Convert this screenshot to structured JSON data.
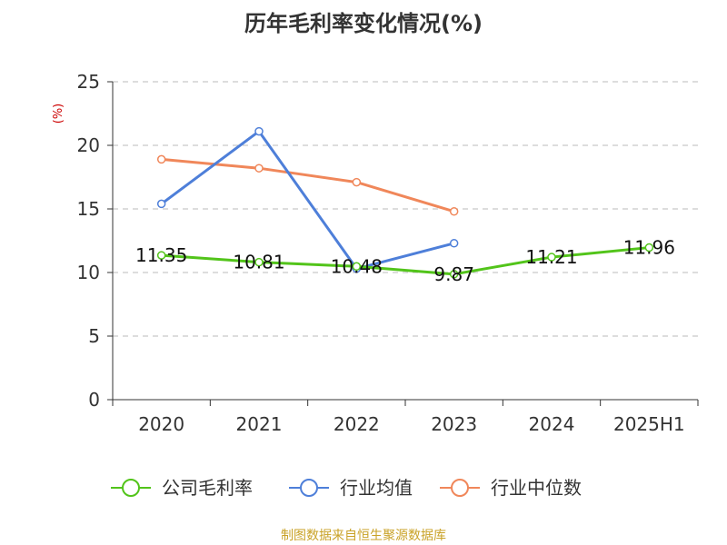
{
  "chart_data": {
    "type": "line",
    "title": "历年毛利率变化情况(%)",
    "ylabel": "(%)",
    "xlabel": "",
    "categories": [
      "2020",
      "2021",
      "2022",
      "2023",
      "2024",
      "2025H1"
    ],
    "ylim": [
      0,
      25
    ],
    "yticks": [
      0,
      5,
      10,
      15,
      20,
      25
    ],
    "grid": true,
    "legend_position": "bottom",
    "series": [
      {
        "name": "公司毛利率",
        "color": "#52c41a",
        "values": [
          11.35,
          10.81,
          10.48,
          9.87,
          11.21,
          11.96
        ],
        "labels": [
          "11.35",
          "10.81",
          "10.48",
          "9.87",
          "11.21",
          "11.96"
        ]
      },
      {
        "name": "行业均值",
        "color": "#4e7fd9",
        "values": [
          15.4,
          21.1,
          10.3,
          12.3,
          null,
          null
        ]
      },
      {
        "name": "行业中位数",
        "color": "#f0875a",
        "values": [
          18.9,
          18.2,
          17.1,
          14.8,
          null,
          null
        ]
      }
    ]
  },
  "footer": {
    "source": "制图数据来自恒生聚源数据库"
  }
}
